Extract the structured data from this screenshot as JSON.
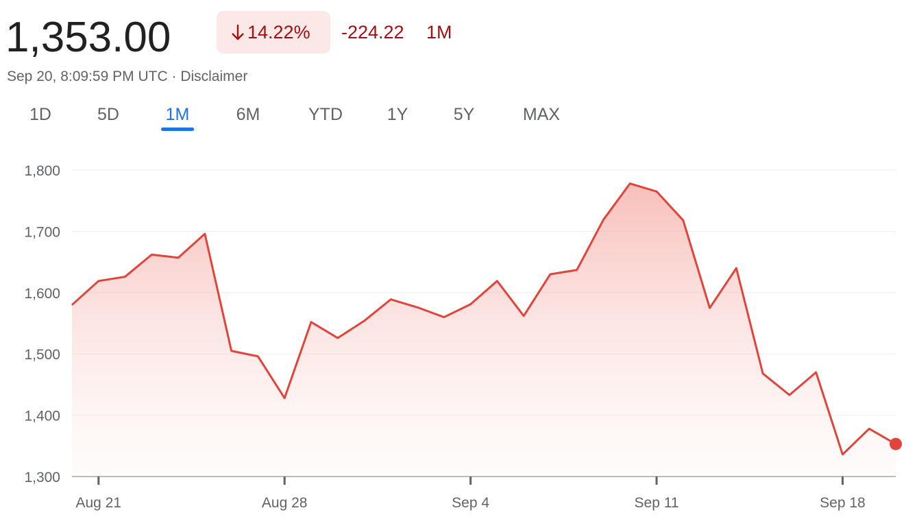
{
  "header": {
    "price": "1,353.00",
    "change_percent": "14.22%",
    "change": "-224.22",
    "period": "1M",
    "timestamp": "Sep 20, 8:09:59 PM UTC",
    "separator": "·",
    "disclaimer": "Disclaimer"
  },
  "tabs": [
    "1D",
    "5D",
    "1M",
    "6M",
    "YTD",
    "1Y",
    "5Y",
    "MAX"
  ],
  "active_tab": 2,
  "chart_data": {
    "type": "line",
    "x": [
      "Aug 20",
      "Aug 21",
      "Aug 22",
      "Aug 23",
      "Aug 24",
      "Aug 25",
      "Aug 26",
      "Aug 27",
      "Aug 28",
      "Aug 29",
      "Aug 30",
      "Aug 31",
      "Sep 1",
      "Sep 2",
      "Sep 3",
      "Sep 4",
      "Sep 5",
      "Sep 6",
      "Sep 7",
      "Sep 8",
      "Sep 9",
      "Sep 10",
      "Sep 11",
      "Sep 12",
      "Sep 13",
      "Sep 14",
      "Sep 15",
      "Sep 16",
      "Sep 17",
      "Sep 18",
      "Sep 19",
      "Sep 20"
    ],
    "series": [
      {
        "color": "#e0443a",
        "values": [
          1580,
          1619,
          1626,
          1662,
          1657,
          1696,
          1505,
          1496,
          1428,
          1552,
          1526,
          1554,
          1589,
          1576,
          1560,
          1581,
          1619,
          1562,
          1630,
          1637,
          1719,
          1778,
          1765,
          1718,
          1575,
          1640,
          1468,
          1433,
          1470,
          1336,
          1378,
          1353
        ]
      }
    ],
    "xticks": [
      "Aug 21",
      "Aug 28",
      "Sep 4",
      "Sep 11",
      "Sep 18"
    ],
    "ylim": [
      1300,
      1800
    ],
    "yticks": [
      {
        "value": 1300,
        "label": "1,300"
      },
      {
        "value": 1400,
        "label": "1,400"
      },
      {
        "value": 1500,
        "label": "1,500"
      },
      {
        "value": 1600,
        "label": "1,600"
      },
      {
        "value": 1700,
        "label": "1,700"
      },
      {
        "value": 1800,
        "label": "1,800"
      }
    ],
    "grid": true
  }
}
